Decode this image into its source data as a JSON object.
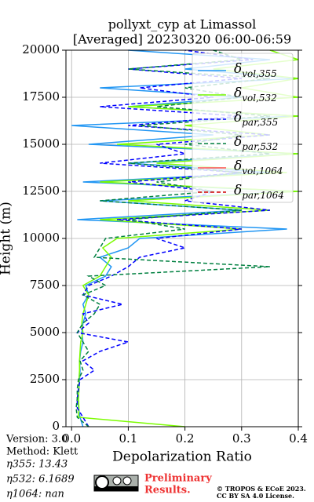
{
  "chart_data": {
    "type": "line",
    "title": "pollyxt_cyp at Limassol",
    "subtitle": "[Averaged] 20230320 06:00-06:59",
    "xlabel": "Depolarization Ratio",
    "ylabel": "Height (m)",
    "xlim": [
      -0.01,
      0.4
    ],
    "ylim": [
      0,
      20000
    ],
    "xticks": [
      {
        "value": 0,
        "label": "0.0"
      },
      0.1,
      0.2,
      0.3,
      0.4
    ],
    "yticks": [
      0,
      2500,
      5000,
      7500,
      10000,
      12500,
      15000,
      17500,
      20000
    ],
    "grid": true,
    "legend": "upper right",
    "y": [
      0,
      500,
      1000,
      1500,
      2000,
      2500,
      3000,
      3500,
      4000,
      4500,
      5000,
      5500,
      6000,
      6500,
      7000,
      7500,
      8000,
      8500,
      9000,
      9500,
      10000,
      10500,
      11000,
      11500,
      12000,
      12500,
      13000,
      13500,
      14000,
      14500,
      15000,
      15500,
      16000,
      16500,
      17000,
      17500,
      18000,
      18500,
      19000,
      19500,
      20000
    ],
    "series": [
      {
        "name": "δvol,355",
        "color": "#2196f3",
        "dash": false,
        "values": [
          0.02,
          0.015,
          0.012,
          0.012,
          0.013,
          0.014,
          0.015,
          0.014,
          0.016,
          0.02,
          0.018,
          0.02,
          0.025,
          0.02,
          0.03,
          0.025,
          0.06,
          0.07,
          0.05,
          0.1,
          0.12,
          0.38,
          0.01,
          0.3,
          0.05,
          0.4,
          0.02,
          0.35,
          0.1,
          0.4,
          0.03,
          0.25,
          0.0,
          0.4,
          0.1,
          0.3,
          0.05,
          0.4,
          0.2,
          0.35,
          0.1
        ]
      },
      {
        "name": "δvol,532",
        "color": "#7cfc00",
        "dash": false,
        "values": [
          0.2,
          0.012,
          0.013,
          0.012,
          0.013,
          0.013,
          0.014,
          0.014,
          0.015,
          0.016,
          0.02,
          0.018,
          0.02,
          0.025,
          0.03,
          0.02,
          0.05,
          0.06,
          0.07,
          0.055,
          0.08,
          0.3,
          0.05,
          0.35,
          0.1,
          0.4,
          0.05,
          0.38,
          0.15,
          0.4,
          0.08,
          0.35,
          0.2,
          0.4,
          0.1,
          0.4,
          0.3,
          0.4,
          0.25,
          0.4,
          0.35
        ]
      },
      {
        "name": "δpar,355",
        "color": "#0000ff",
        "dash": true,
        "values": [
          0.03,
          0.02,
          0.01,
          0.01,
          0.012,
          0.015,
          0.04,
          0.02,
          0.05,
          0.1,
          0.01,
          0.03,
          0.02,
          0.09,
          0.02,
          0.03,
          0.07,
          0.1,
          0.12,
          0.2,
          0.15,
          0.3,
          0.08,
          0.35,
          0.2,
          0.25,
          0.1,
          0.3,
          0.05,
          0.2,
          0.15,
          0.35,
          0.1,
          0.3,
          0.05,
          0.25,
          0.12,
          0.3,
          0.1,
          0.32,
          0.2
        ]
      },
      {
        "name": "δpar,532",
        "color": "#008040",
        "dash": true,
        "values": [
          0.03,
          0.01,
          0.008,
          0.01,
          0.01,
          0.012,
          0.02,
          0.015,
          0.03,
          0.02,
          0.01,
          0.02,
          0.04,
          0.05,
          0.02,
          0.06,
          0.03,
          0.35,
          0.04,
          0.05,
          0.06,
          0.2,
          0.1,
          0.3,
          0.05,
          0.25,
          0.15,
          0.3,
          0.1,
          0.35,
          0.2,
          0.3,
          0.12,
          0.35,
          0.15,
          0.3,
          0.2,
          0.35,
          0.1,
          0.3,
          0.25
        ]
      },
      {
        "name": "δvol,1064",
        "color": "#ff5050",
        "dash": false,
        "values": [
          null,
          null,
          null,
          null,
          null,
          null,
          null,
          null,
          null,
          null,
          null,
          null,
          null,
          null,
          null,
          null,
          null,
          null,
          null,
          null,
          null,
          null,
          null,
          null,
          null,
          null,
          null,
          null,
          null,
          null,
          null,
          null,
          null,
          null,
          null,
          null,
          null,
          null,
          null,
          null,
          null
        ]
      },
      {
        "name": "δpar,1064",
        "color": "#d00000",
        "dash": true,
        "values": [
          null,
          null,
          null,
          null,
          null,
          null,
          null,
          null,
          null,
          null,
          null,
          null,
          null,
          null,
          null,
          null,
          null,
          null,
          null,
          null,
          null,
          null,
          null,
          null,
          null,
          null,
          null,
          null,
          null,
          null,
          null,
          null,
          null,
          null,
          null,
          null,
          null,
          null,
          null,
          null,
          null
        ]
      }
    ]
  },
  "info": {
    "version": "Version: 3.0",
    "method": "Method: Klett",
    "eta355": "η355:  13.43",
    "eta532": "η532: 6.1689",
    "eta1064": "η1064:    nan"
  },
  "footer": {
    "preliminary": "Preliminary",
    "results": "Results.",
    "copyright": "© TROPOS & ECoE 2023.",
    "license": "CC BY SA 4.0 License."
  }
}
